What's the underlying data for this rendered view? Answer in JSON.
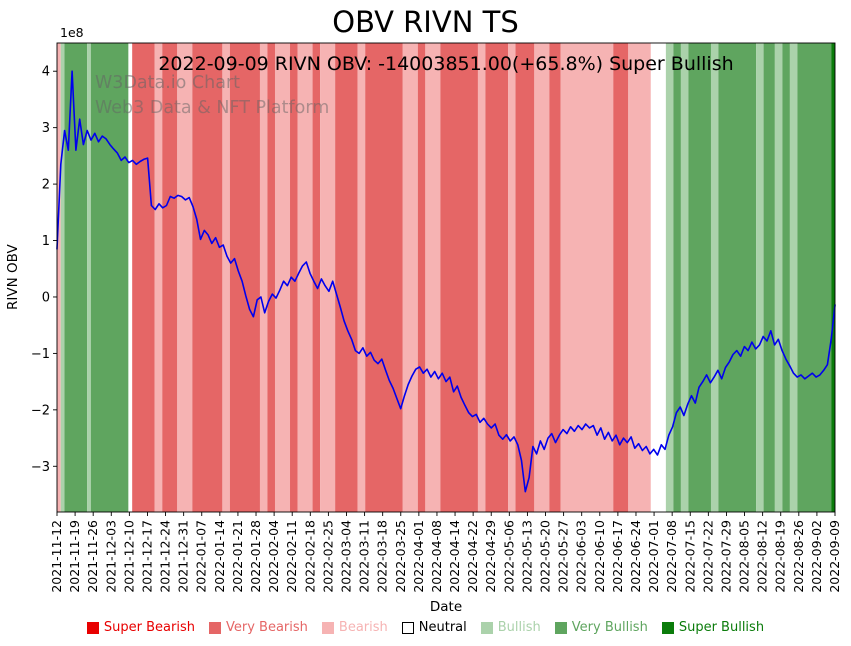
{
  "header": {
    "title": "OBV RIVN TS",
    "subtitle": "2022-09-09 RIVN OBV: -14003851.00(+65.8%) Super Bullish"
  },
  "watermark": {
    "line1": "W3Data.io Chart",
    "line2": "Web3 Data & NFT Platform"
  },
  "legend": {
    "items": [
      {
        "label": "Super Bearish",
        "category": "super_bearish"
      },
      {
        "label": "Very Bearish",
        "category": "very_bearish"
      },
      {
        "label": "Bearish",
        "category": "bearish"
      },
      {
        "label": "Neutral",
        "category": "neutral"
      },
      {
        "label": "Bullish",
        "category": "bullish"
      },
      {
        "label": "Very Bullish",
        "category": "very_bullish"
      },
      {
        "label": "Super Bullish",
        "category": "super_bullish"
      }
    ]
  },
  "chart_data": {
    "type": "line",
    "title": "OBV RIVN TS",
    "xlabel": "Date",
    "ylabel": "RIVN OBV",
    "y_offset_label": "1e8",
    "units": "y values in units of 1e8 (100,000,000); estimated from axis",
    "ylim": [
      -3.81,
      4.5
    ],
    "y_ticks": [
      -3,
      -2,
      -1,
      0,
      1,
      2,
      3,
      4
    ],
    "grid": false,
    "legend_position": "bottom",
    "last_point": {
      "date": "2022-09-09",
      "obv": -14003851.0,
      "change_pct": "+65.8%",
      "sentiment": "Super Bullish"
    },
    "x_tick_labels": [
      "2021-11-12",
      "2021-11-19",
      "2021-11-26",
      "2021-12-03",
      "2021-12-10",
      "2021-12-17",
      "2021-12-24",
      "2021-12-31",
      "2022-01-07",
      "2022-01-14",
      "2022-01-21",
      "2022-01-28",
      "2022-02-04",
      "2022-02-11",
      "2022-02-18",
      "2022-02-25",
      "2022-03-04",
      "2022-03-11",
      "2022-03-18",
      "2022-03-25",
      "2022-04-01",
      "2022-04-08",
      "2022-04-14",
      "2022-04-22",
      "2022-04-29",
      "2022-05-06",
      "2022-05-13",
      "2022-05-20",
      "2022-05-27",
      "2022-06-03",
      "2022-06-10",
      "2022-06-17",
      "2022-06-24",
      "2022-07-01",
      "2022-07-08",
      "2022-07-15",
      "2022-07-22",
      "2022-07-29",
      "2022-08-05",
      "2022-08-12",
      "2022-08-19",
      "2022-08-26",
      "2022-09-02",
      "2022-09-09"
    ],
    "series": [
      {
        "name": "RIVN OBV",
        "color": "#0000ee",
        "values": [
          0.85,
          2.35,
          2.95,
          2.6,
          4.0,
          2.6,
          3.15,
          2.7,
          2.95,
          2.78,
          2.9,
          2.75,
          2.85,
          2.8,
          2.7,
          2.62,
          2.55,
          2.42,
          2.48,
          2.38,
          2.42,
          2.35,
          2.4,
          2.44,
          2.46,
          1.62,
          1.55,
          1.65,
          1.58,
          1.62,
          1.78,
          1.75,
          1.8,
          1.78,
          1.72,
          1.76,
          1.6,
          1.38,
          1.02,
          1.18,
          1.1,
          0.95,
          1.05,
          0.88,
          0.92,
          0.72,
          0.6,
          0.68,
          0.46,
          0.28,
          0.02,
          -0.22,
          -0.35,
          -0.05,
          0.0,
          -0.28,
          -0.08,
          0.05,
          -0.02,
          0.12,
          0.28,
          0.2,
          0.35,
          0.28,
          0.42,
          0.55,
          0.62,
          0.42,
          0.28,
          0.15,
          0.32,
          0.2,
          0.1,
          0.28,
          0.05,
          -0.18,
          -0.42,
          -0.6,
          -0.75,
          -0.95,
          -1.0,
          -0.9,
          -1.05,
          -0.98,
          -1.12,
          -1.18,
          -1.1,
          -1.3,
          -1.48,
          -1.62,
          -1.8,
          -1.98,
          -1.75,
          -1.55,
          -1.4,
          -1.28,
          -1.24,
          -1.35,
          -1.28,
          -1.42,
          -1.32,
          -1.45,
          -1.35,
          -1.5,
          -1.42,
          -1.68,
          -1.58,
          -1.78,
          -1.92,
          -2.05,
          -2.12,
          -2.08,
          -2.22,
          -2.15,
          -2.25,
          -2.32,
          -2.25,
          -2.45,
          -2.52,
          -2.44,
          -2.55,
          -2.48,
          -2.62,
          -2.9,
          -3.45,
          -3.2,
          -2.65,
          -2.78,
          -2.55,
          -2.7,
          -2.5,
          -2.42,
          -2.58,
          -2.45,
          -2.35,
          -2.42,
          -2.3,
          -2.38,
          -2.28,
          -2.35,
          -2.25,
          -2.32,
          -2.28,
          -2.45,
          -2.32,
          -2.52,
          -2.4,
          -2.55,
          -2.45,
          -2.62,
          -2.5,
          -2.58,
          -2.48,
          -2.68,
          -2.6,
          -2.72,
          -2.65,
          -2.78,
          -2.7,
          -2.8,
          -2.62,
          -2.7,
          -2.45,
          -2.3,
          -2.05,
          -1.95,
          -2.1,
          -1.9,
          -1.75,
          -1.88,
          -1.6,
          -1.5,
          -1.38,
          -1.52,
          -1.42,
          -1.3,
          -1.45,
          -1.25,
          -1.15,
          -1.02,
          -0.95,
          -1.05,
          -0.88,
          -0.95,
          -0.8,
          -0.92,
          -0.85,
          -0.7,
          -0.78,
          -0.6,
          -0.85,
          -0.75,
          -0.95,
          -1.1,
          -1.22,
          -1.35,
          -1.42,
          -1.38,
          -1.45,
          -1.4,
          -1.35,
          -1.42,
          -1.38,
          -1.3,
          -1.2,
          -0.75,
          -0.14
        ]
      }
    ],
    "sentiment_band_colors": {
      "super_bearish": "#e80000",
      "very_bearish": "#e56666",
      "bearish": "#f6b3b3",
      "neutral": "#ffffff",
      "bullish": "#abd2ab",
      "very_bullish": "#5fa55f",
      "super_bullish": "#0b7c0b"
    },
    "sentiment_bands": [
      {
        "from": 0,
        "to": 1,
        "category": "bearish"
      },
      {
        "from": 1,
        "to": 2,
        "category": "bullish"
      },
      {
        "from": 2,
        "to": 8,
        "category": "very_bullish"
      },
      {
        "from": 8,
        "to": 9,
        "category": "bullish"
      },
      {
        "from": 9,
        "to": 19,
        "category": "very_bullish"
      },
      {
        "from": 19,
        "to": 20,
        "category": "neutral"
      },
      {
        "from": 20,
        "to": 26,
        "category": "very_bearish"
      },
      {
        "from": 26,
        "to": 28,
        "category": "bearish"
      },
      {
        "from": 28,
        "to": 32,
        "category": "very_bearish"
      },
      {
        "from": 32,
        "to": 36,
        "category": "bearish"
      },
      {
        "from": 36,
        "to": 44,
        "category": "very_bearish"
      },
      {
        "from": 44,
        "to": 46,
        "category": "bearish"
      },
      {
        "from": 46,
        "to": 54,
        "category": "very_bearish"
      },
      {
        "from": 54,
        "to": 56,
        "category": "bearish"
      },
      {
        "from": 56,
        "to": 58,
        "category": "very_bearish"
      },
      {
        "from": 58,
        "to": 62,
        "category": "bearish"
      },
      {
        "from": 62,
        "to": 64,
        "category": "very_bearish"
      },
      {
        "from": 64,
        "to": 68,
        "category": "bearish"
      },
      {
        "from": 68,
        "to": 70,
        "category": "very_bearish"
      },
      {
        "from": 70,
        "to": 74,
        "category": "bearish"
      },
      {
        "from": 74,
        "to": 80,
        "category": "very_bearish"
      },
      {
        "from": 80,
        "to": 82,
        "category": "bearish"
      },
      {
        "from": 82,
        "to": 92,
        "category": "very_bearish"
      },
      {
        "from": 92,
        "to": 96,
        "category": "bearish"
      },
      {
        "from": 96,
        "to": 98,
        "category": "very_bearish"
      },
      {
        "from": 98,
        "to": 102,
        "category": "bearish"
      },
      {
        "from": 102,
        "to": 112,
        "category": "very_bearish"
      },
      {
        "from": 112,
        "to": 114,
        "category": "bearish"
      },
      {
        "from": 114,
        "to": 120,
        "category": "very_bearish"
      },
      {
        "from": 120,
        "to": 122,
        "category": "bearish"
      },
      {
        "from": 122,
        "to": 127,
        "category": "very_bearish"
      },
      {
        "from": 127,
        "to": 131,
        "category": "bearish"
      },
      {
        "from": 131,
        "to": 134,
        "category": "very_bearish"
      },
      {
        "from": 134,
        "to": 148,
        "category": "bearish"
      },
      {
        "from": 148,
        "to": 152,
        "category": "very_bearish"
      },
      {
        "from": 152,
        "to": 158,
        "category": "bearish"
      },
      {
        "from": 158,
        "to": 162,
        "category": "neutral"
      },
      {
        "from": 162,
        "to": 164,
        "category": "bullish"
      },
      {
        "from": 164,
        "to": 166,
        "category": "very_bullish"
      },
      {
        "from": 166,
        "to": 168,
        "category": "bullish"
      },
      {
        "from": 168,
        "to": 174,
        "category": "very_bullish"
      },
      {
        "from": 174,
        "to": 176,
        "category": "bullish"
      },
      {
        "from": 176,
        "to": 186,
        "category": "very_bullish"
      },
      {
        "from": 186,
        "to": 188,
        "category": "bullish"
      },
      {
        "from": 188,
        "to": 191,
        "category": "very_bullish"
      },
      {
        "from": 191,
        "to": 193,
        "category": "bullish"
      },
      {
        "from": 193,
        "to": 195,
        "category": "very_bullish"
      },
      {
        "from": 195,
        "to": 197,
        "category": "bullish"
      },
      {
        "from": 197,
        "to": 206,
        "category": "very_bullish"
      },
      {
        "from": 206,
        "to": 207,
        "category": "super_bullish"
      }
    ]
  }
}
